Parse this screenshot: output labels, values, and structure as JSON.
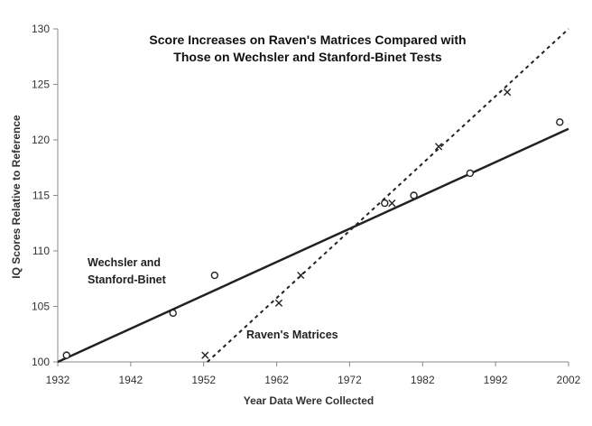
{
  "chart_data": {
    "type": "scatter",
    "title_lines": [
      "Score Increases on Raven's Matrices Compared with",
      "Those on Wechsler and Stanford-Binet Tests"
    ],
    "xlabel": "Year Data Were Collected",
    "ylabel": "IQ Scores Relative to Reference",
    "xlim": [
      1932,
      2002
    ],
    "ylim": [
      100,
      130
    ],
    "xticks": [
      1932,
      1942,
      1952,
      1962,
      1972,
      1982,
      1992,
      2002
    ],
    "yticks": [
      100,
      105,
      110,
      115,
      120,
      125,
      130
    ],
    "grid": false,
    "colors": {
      "axis": "#888888",
      "marks": "#222222",
      "text": "#333333"
    },
    "series": [
      {
        "name": "Wechsler and Stanford-Binet",
        "marker": "circle",
        "points": [
          {
            "x": 1933.2,
            "y": 100.6
          },
          {
            "x": 1947.8,
            "y": 104.4
          },
          {
            "x": 1953.5,
            "y": 107.8
          },
          {
            "x": 1976.8,
            "y": 114.3
          },
          {
            "x": 1980.8,
            "y": 115.0
          },
          {
            "x": 1988.5,
            "y": 117.0
          },
          {
            "x": 2000.8,
            "y": 121.6
          }
        ],
        "trend": {
          "line": "solid",
          "from": {
            "x": 1932,
            "y": 100
          },
          "to": {
            "x": 2002,
            "y": 121
          }
        }
      },
      {
        "name": "Raven's Matrices",
        "marker": "x",
        "points": [
          {
            "x": 1952.2,
            "y": 100.6
          },
          {
            "x": 1962.3,
            "y": 105.3
          },
          {
            "x": 1965.3,
            "y": 107.8
          },
          {
            "x": 1977.8,
            "y": 114.3
          },
          {
            "x": 1984.2,
            "y": 119.4
          },
          {
            "x": 1993.6,
            "y": 124.3
          }
        ],
        "trend": {
          "line": "dashed",
          "from": {
            "x": 1952.5,
            "y": 100
          },
          "to": {
            "x": 2002,
            "y": 130
          }
        }
      }
    ],
    "annotations": [
      {
        "series": "Wechsler and Stanford-Binet",
        "lines": [
          "Wechsler and",
          "Stanford-Binet"
        ]
      },
      {
        "series": "Raven's Matrices",
        "lines": [
          "Raven's Matrices"
        ]
      }
    ]
  }
}
